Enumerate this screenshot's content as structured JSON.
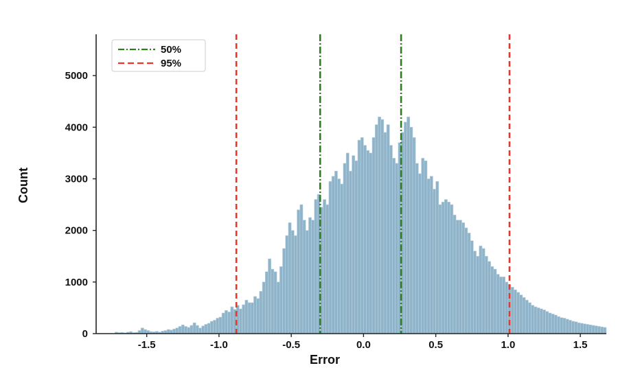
{
  "chart_data": {
    "type": "histogram",
    "xlabel": "Error",
    "ylabel": "Count",
    "xlim": [
      -1.85,
      1.68
    ],
    "ylim": [
      0,
      5800
    ],
    "xticks": [
      -1.5,
      -1.0,
      -0.5,
      0.0,
      0.5,
      1.0,
      1.5
    ],
    "xtick_labels": [
      "-1.5",
      "-1.0",
      "-0.5",
      "0.0",
      "0.5",
      "1.0",
      "1.5"
    ],
    "yticks": [
      0,
      1000,
      2000,
      3000,
      4000,
      5000
    ],
    "ytick_labels": [
      "0",
      "1000",
      "2000",
      "3000",
      "4000",
      "5000"
    ],
    "grid": false,
    "legend_position": "top-left",
    "bar_color": "#8fb3c8",
    "bar_edge_color": "#b9d3e2",
    "reference_lines": [
      {
        "name": "50%",
        "x": -0.3,
        "color": "#2e7d1e",
        "style": "dashdot"
      },
      {
        "name": "50%",
        "x": 0.26,
        "color": "#2e7d1e",
        "style": "dashdot"
      },
      {
        "name": "95%",
        "x": -0.88,
        "color": "#e8362b",
        "style": "dashed"
      },
      {
        "name": "95%",
        "x": 1.01,
        "color": "#e8362b",
        "style": "dashed"
      }
    ],
    "legend": [
      {
        "label": "50%",
        "color": "#2e7d1e",
        "style": "dashdot"
      },
      {
        "label": "95%",
        "color": "#e8362b",
        "style": "dashed"
      }
    ],
    "bins": {
      "start": -1.72,
      "width": 0.02,
      "values": [
        30,
        20,
        25,
        15,
        30,
        40,
        20,
        25,
        60,
        110,
        80,
        60,
        40,
        35,
        45,
        30,
        50,
        60,
        80,
        70,
        90,
        110,
        140,
        170,
        140,
        120,
        160,
        210,
        160,
        110,
        150,
        180,
        200,
        240,
        260,
        300,
        320,
        400,
        450,
        420,
        520,
        470,
        550,
        480,
        560,
        650,
        600,
        600,
        720,
        680,
        820,
        1000,
        1200,
        1450,
        1250,
        1200,
        1000,
        1300,
        1650,
        1900,
        2150,
        2000,
        1900,
        2400,
        2500,
        2200,
        2000,
        2250,
        2200,
        2600,
        2700,
        2450,
        2600,
        2500,
        2950,
        3050,
        3150,
        3000,
        2900,
        3300,
        3500,
        3150,
        3450,
        3350,
        3750,
        3800,
        3650,
        3550,
        3500,
        3800,
        4050,
        4200,
        4150,
        3900,
        4050,
        3650,
        3400,
        3300,
        3700,
        3900,
        4100,
        4200,
        4000,
        3800,
        3300,
        3100,
        3400,
        3350,
        3000,
        3050,
        2800,
        2950,
        2500,
        2550,
        2600,
        2550,
        2500,
        2300,
        2200,
        2200,
        2150,
        2050,
        1950,
        1800,
        1600,
        1500,
        1700,
        1650,
        1500,
        1400,
        1300,
        1250,
        1150,
        1100,
        1100,
        1000,
        950,
        900,
        850,
        800,
        750,
        700,
        650,
        600,
        550,
        520,
        500,
        480,
        460,
        430,
        400,
        380,
        360,
        330,
        310,
        300,
        280,
        260,
        240,
        230,
        210,
        200,
        190,
        180,
        170,
        160,
        150,
        140,
        130,
        120
      ]
    }
  }
}
